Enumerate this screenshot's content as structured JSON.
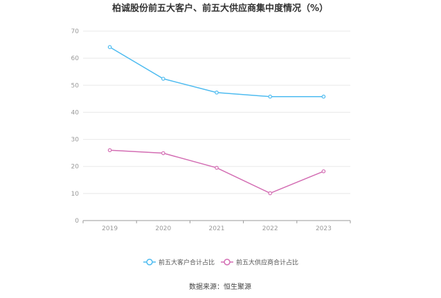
{
  "chart_data": {
    "type": "line",
    "title": "柏诚股份前五大客户、前五大供应商集中度情况（%）",
    "xlabel": "",
    "ylabel": "",
    "categories": [
      "2019",
      "2020",
      "2021",
      "2022",
      "2023"
    ],
    "ylim": [
      0,
      70
    ],
    "yticks": [
      "0",
      "10",
      "20",
      "30",
      "40",
      "50",
      "60",
      "70"
    ],
    "grid": true,
    "legend": "bottom",
    "series": [
      {
        "name": "前五大客户合计占比",
        "color": "#4dbbf0",
        "values": [
          64.1,
          52.4,
          47.3,
          45.8,
          45.8
        ]
      },
      {
        "name": "前五大供应商合计占比",
        "color": "#d36db3",
        "values": [
          26.0,
          24.9,
          19.5,
          10.1,
          18.2
        ]
      }
    ],
    "source": "数据来源：恒生聚源"
  }
}
